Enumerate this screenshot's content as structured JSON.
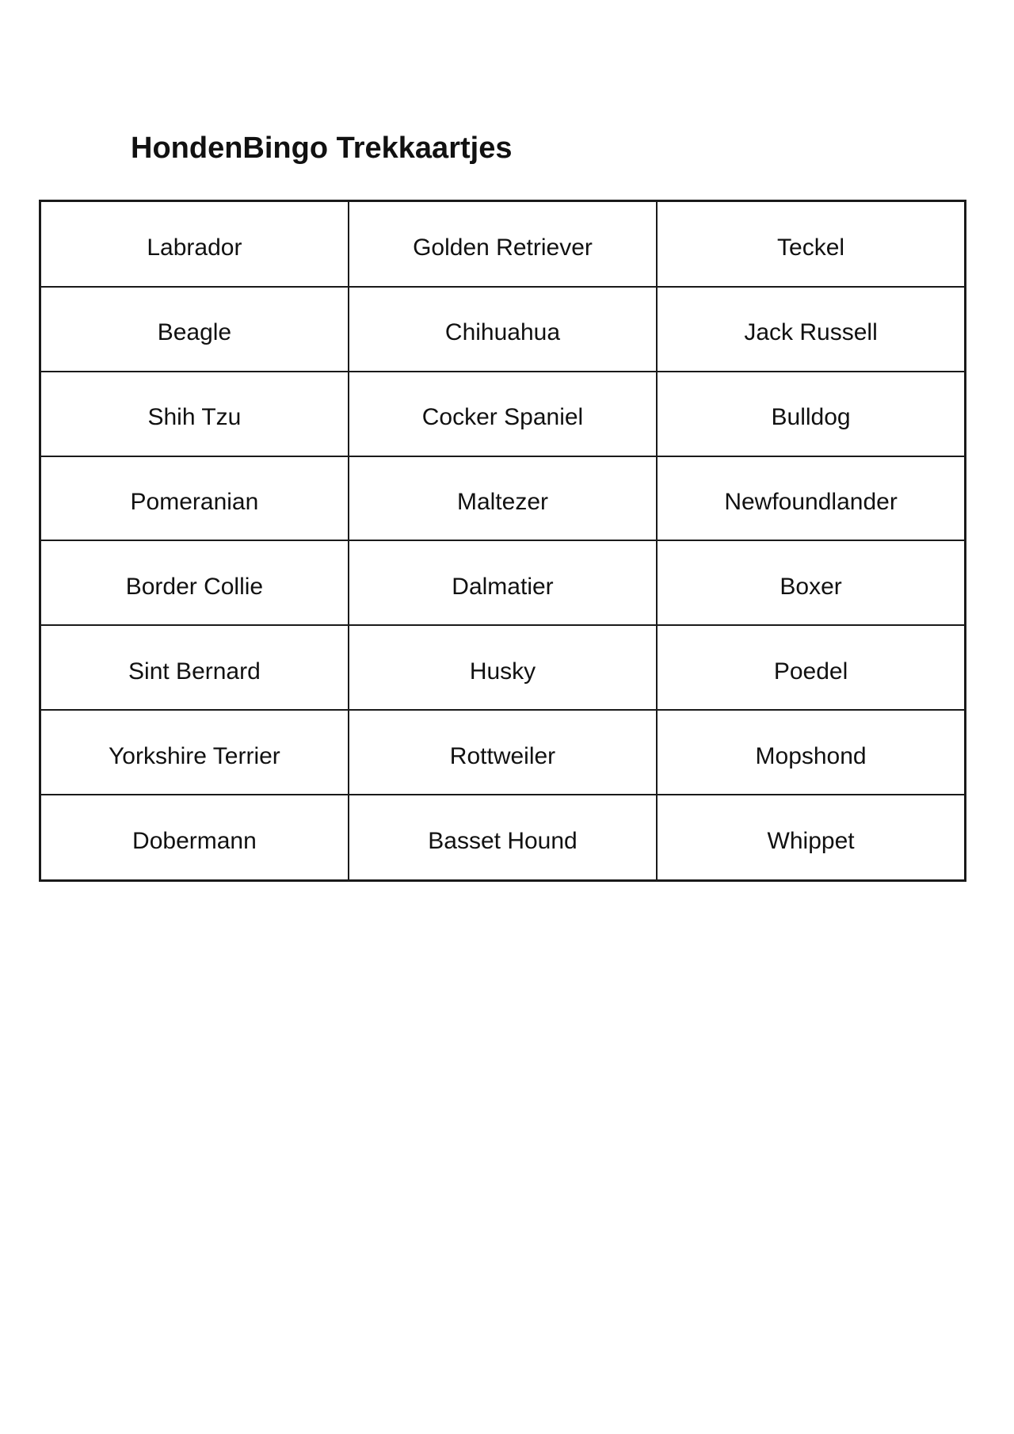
{
  "page": {
    "title": "HondenBingo Trekkaartjes"
  },
  "grid": {
    "columns": 3,
    "rows": [
      [
        "Labrador",
        "Golden Retriever",
        "Teckel"
      ],
      [
        "Beagle",
        "Chihuahua",
        "Jack Russell"
      ],
      [
        "Shih Tzu",
        "Cocker Spaniel",
        "Bulldog"
      ],
      [
        "Pomeranian",
        "Maltezer",
        "Newfoundlander"
      ],
      [
        "Border Collie",
        "Dalmatier",
        "Boxer"
      ],
      [
        "Sint Bernard",
        "Husky",
        "Poedel"
      ],
      [
        "Yorkshire Terrier",
        "Rottweiler",
        "Mopshond"
      ],
      [
        "Dobermann",
        "Basset Hound",
        "Whippet"
      ]
    ]
  },
  "colors": {
    "background": "#ffffff",
    "text": "#111111",
    "border": "#1a1a1a"
  }
}
